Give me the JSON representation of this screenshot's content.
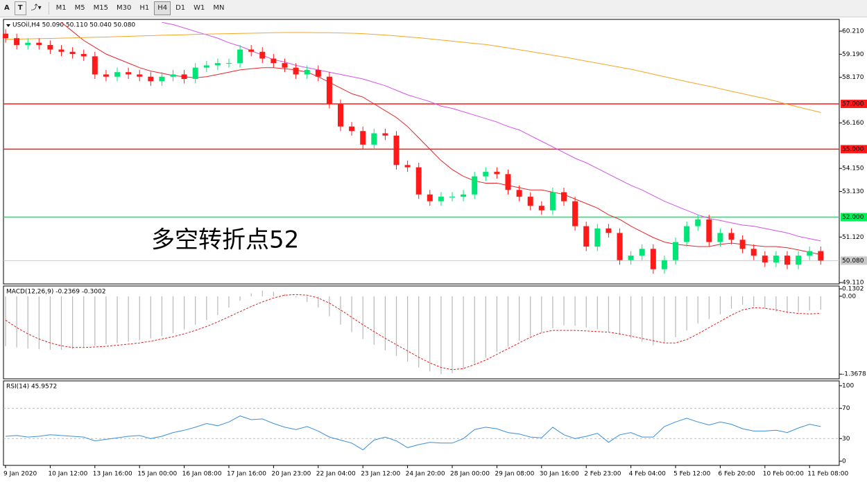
{
  "toolbar": {
    "tools": [
      "A",
      "T"
    ],
    "timeframes": [
      "M1",
      "M5",
      "M15",
      "M30",
      "H1",
      "H4",
      "D1",
      "W1",
      "MN"
    ],
    "active": "H4"
  },
  "chart_data": [
    {
      "type": "candlestick",
      "title": "USOil,H4  50.090 50.110 50.040 50.080",
      "categories": [
        "9 Jan 2020",
        null,
        null,
        null,
        "10 Jan 12:00",
        null,
        null,
        null,
        "13 Jan 16:00",
        null,
        null,
        null,
        "15 Jan 00:00",
        null,
        null,
        null,
        "16 Jan 08:00",
        null,
        null,
        null,
        "17 Jan 16:00",
        null,
        null,
        null,
        "20 Jan 23:00",
        null,
        null,
        null,
        "22 Jan 04:00",
        null,
        null,
        null,
        "23 Jan 12:00",
        null,
        null,
        null,
        "24 Jan 20:00",
        null,
        null,
        null,
        "28 Jan 00:00",
        null,
        null,
        null,
        "29 Jan 08:00",
        null,
        null,
        null,
        "30 Jan 16:00",
        null,
        null,
        null,
        "2 Feb 23:00",
        null,
        null,
        null,
        "4 Feb 04:00",
        null,
        null,
        null,
        "5 Feb 12:00",
        null,
        null,
        null,
        "6 Feb 20:00",
        null,
        null,
        null,
        "10 Feb 00:00",
        null,
        null,
        null,
        "11 Feb 08:00",
        null
      ],
      "open": [
        60.1,
        59.9,
        59.6,
        59.7,
        59.6,
        59.4,
        59.3,
        59.2,
        59.1,
        58.3,
        58.2,
        58.4,
        58.3,
        58.2,
        58.0,
        58.2,
        58.3,
        58.1,
        58.6,
        58.7,
        58.8,
        58.8,
        59.4,
        59.3,
        59.0,
        58.8,
        58.6,
        58.3,
        58.5,
        58.2,
        57.0,
        56.0,
        55.8,
        55.2,
        55.7,
        55.6,
        54.3,
        54.2,
        53.0,
        52.7,
        52.9,
        52.9,
        53.0,
        53.8,
        54.0,
        53.9,
        53.2,
        52.9,
        52.5,
        52.3,
        53.1,
        52.7,
        51.6,
        50.7,
        51.5,
        51.3,
        50.1,
        50.3,
        50.6,
        49.7,
        50.1,
        50.9,
        51.6,
        51.9,
        50.9,
        51.3,
        51.0,
        50.6,
        50.3,
        50.0,
        50.3,
        49.9,
        50.3,
        50.5
      ],
      "high": [
        60.3,
        60.1,
        59.9,
        59.9,
        59.8,
        59.6,
        59.5,
        59.4,
        59.3,
        58.5,
        58.6,
        58.6,
        58.5,
        58.4,
        58.4,
        58.5,
        58.5,
        58.8,
        58.9,
        59.0,
        59.0,
        59.6,
        59.6,
        59.5,
        59.2,
        59.0,
        58.8,
        58.7,
        58.7,
        58.4,
        57.2,
        56.2,
        56.0,
        55.9,
        55.9,
        55.8,
        54.5,
        54.4,
        53.2,
        53.1,
        53.1,
        53.2,
        54.0,
        54.2,
        54.2,
        54.1,
        53.4,
        53.1,
        52.7,
        53.3,
        53.3,
        52.9,
        51.8,
        51.7,
        51.7,
        51.5,
        50.5,
        50.8,
        50.8,
        50.3,
        51.1,
        51.8,
        52.1,
        52.1,
        51.5,
        51.5,
        51.2,
        50.8,
        50.5,
        50.5,
        50.5,
        50.5,
        50.7,
        50.7
      ],
      "low": [
        59.7,
        59.4,
        59.4,
        59.4,
        59.2,
        59.1,
        59.0,
        58.9,
        58.1,
        58.0,
        58.0,
        58.1,
        58.0,
        57.8,
        57.8,
        58.0,
        57.9,
        57.9,
        58.4,
        58.5,
        58.6,
        58.6,
        59.1,
        58.8,
        58.6,
        58.4,
        58.1,
        58.1,
        58.0,
        56.8,
        55.8,
        55.6,
        55.0,
        55.0,
        55.4,
        54.1,
        54.0,
        52.8,
        52.5,
        52.5,
        52.7,
        52.7,
        52.8,
        53.6,
        53.7,
        53.0,
        52.7,
        52.3,
        52.1,
        52.1,
        52.5,
        51.4,
        50.5,
        50.5,
        51.1,
        49.9,
        49.9,
        50.1,
        49.5,
        49.5,
        49.9,
        50.7,
        51.4,
        50.7,
        50.7,
        50.8,
        50.4,
        50.1,
        49.8,
        49.8,
        49.7,
        49.7,
        50.1,
        49.9
      ],
      "close": [
        59.9,
        59.6,
        59.7,
        59.6,
        59.4,
        59.3,
        59.2,
        59.1,
        58.3,
        58.2,
        58.4,
        58.3,
        58.2,
        58.0,
        58.2,
        58.3,
        58.1,
        58.6,
        58.7,
        58.8,
        58.8,
        59.4,
        59.3,
        59.0,
        58.8,
        58.6,
        58.3,
        58.5,
        58.2,
        57.0,
        56.0,
        55.8,
        55.2,
        55.7,
        55.6,
        54.3,
        54.2,
        53.0,
        52.7,
        52.9,
        52.9,
        53.0,
        53.8,
        54.0,
        53.9,
        53.2,
        52.9,
        52.5,
        52.3,
        53.1,
        52.7,
        51.6,
        50.7,
        51.5,
        51.3,
        50.1,
        50.3,
        50.6,
        49.7,
        50.1,
        50.9,
        51.6,
        51.9,
        50.9,
        51.3,
        51.0,
        50.6,
        50.3,
        50.0,
        50.3,
        49.9,
        50.3,
        50.5,
        50.08
      ],
      "up_color": "#00e676",
      "down_color": "#ff1a1a",
      "lines": [
        {
          "color": "#e8242b",
          "values": [
            null,
            null,
            null,
            null,
            null,
            60.6,
            60.2,
            59.8,
            59.5,
            59.2,
            59.0,
            58.8,
            58.6,
            58.45,
            58.35,
            58.25,
            58.2,
            58.15,
            58.2,
            58.3,
            58.4,
            58.5,
            58.55,
            58.6,
            58.6,
            58.55,
            58.5,
            58.4,
            58.2,
            57.95,
            57.7,
            57.45,
            57.3,
            57.0,
            56.7,
            56.4,
            56.0,
            55.5,
            55.0,
            54.5,
            54.1,
            53.8,
            53.6,
            53.5,
            53.5,
            53.4,
            53.3,
            53.2,
            53.2,
            53.1,
            53.0,
            52.8,
            52.6,
            52.4,
            52.1,
            51.9,
            51.6,
            51.35,
            51.1,
            50.9,
            50.8,
            50.75,
            50.7,
            50.7,
            50.8,
            50.85,
            50.8,
            50.75,
            50.7,
            50.7,
            50.65,
            50.55,
            50.45,
            50.35
          ]
        },
        {
          "color": "#d452e8",
          "values": [
            null,
            null,
            null,
            null,
            null,
            null,
            null,
            null,
            null,
            null,
            null,
            null,
            null,
            null,
            60.6,
            60.5,
            60.35,
            60.2,
            60.05,
            59.9,
            59.7,
            59.55,
            59.35,
            59.15,
            58.95,
            58.85,
            58.7,
            58.6,
            58.5,
            58.4,
            58.3,
            58.2,
            58.1,
            57.95,
            57.8,
            57.6,
            57.4,
            57.25,
            57.1,
            56.9,
            56.8,
            56.65,
            56.5,
            56.35,
            56.2,
            56.0,
            55.85,
            55.6,
            55.35,
            55.1,
            54.85,
            54.6,
            54.4,
            54.15,
            53.9,
            53.65,
            53.4,
            53.2,
            52.95,
            52.7,
            52.5,
            52.3,
            52.1,
            51.95,
            51.85,
            51.75,
            51.65,
            51.6,
            51.5,
            51.4,
            51.3,
            51.15,
            51.05,
            50.95
          ]
        },
        {
          "color": "#f5a623",
          "values": [
            59.85,
            59.86,
            59.87,
            59.88,
            59.89,
            59.9,
            59.91,
            59.93,
            59.94,
            59.95,
            59.97,
            59.98,
            60.0,
            60.01,
            60.03,
            60.04,
            60.05,
            60.07,
            60.08,
            60.09,
            60.1,
            60.11,
            60.12,
            60.13,
            60.14,
            60.15,
            60.15,
            60.15,
            60.14,
            60.14,
            60.13,
            60.12,
            60.1,
            60.07,
            60.04,
            60.0,
            59.96,
            59.92,
            59.87,
            59.82,
            59.77,
            59.72,
            59.67,
            59.62,
            59.55,
            59.47,
            59.39,
            59.31,
            59.23,
            59.15,
            59.07,
            58.98,
            58.89,
            58.8,
            58.71,
            58.62,
            58.53,
            58.42,
            58.31,
            58.2,
            58.09,
            57.98,
            57.88,
            57.78,
            57.67,
            57.56,
            57.45,
            57.34,
            57.24,
            57.12,
            56.98,
            56.86,
            56.74,
            56.62
          ]
        }
      ],
      "hlines": [
        {
          "value": 57,
          "label": "57.000",
          "color": "#ff1a1a"
        },
        {
          "value": 55,
          "label": "55.000",
          "color": "#ff1a1a"
        },
        {
          "value": 52,
          "label": "52.000",
          "color": "#00f05a"
        },
        {
          "value": 50.08,
          "label": "50.080",
          "color": "#c8c8c8"
        }
      ],
      "annotation": {
        "text": "多空转折点52",
        "color": "#ff1a1a"
      },
      "ylim": [
        49.05,
        60.73
      ],
      "yticks": [
        {
          "value": 60.21,
          "label": "60.210"
        },
        {
          "value": 59.19,
          "label": "59.190"
        },
        {
          "value": 58.17,
          "label": "58.170"
        },
        {
          "value": 56.16,
          "label": "56.160"
        },
        {
          "value": 54.15,
          "label": "54.150"
        },
        {
          "value": 53.13,
          "label": "53.130"
        },
        {
          "value": 51.12,
          "label": "51.120"
        },
        {
          "value": 49.11,
          "label": "49.110"
        }
      ]
    },
    {
      "type": "macd",
      "title": "MACD(12,26,9) -0.2369 -0.3002",
      "histogram": [
        -0.88,
        -0.9,
        -0.92,
        -0.93,
        -0.94,
        -0.94,
        -0.93,
        -0.9,
        -0.87,
        -0.84,
        -0.82,
        -0.8,
        -0.77,
        -0.74,
        -0.7,
        -0.65,
        -0.58,
        -0.5,
        -0.42,
        -0.33,
        -0.2,
        -0.08,
        0.05,
        0.1,
        0.08,
        0.04,
        -0.02,
        -0.1,
        -0.2,
        -0.35,
        -0.5,
        -0.63,
        -0.75,
        -0.85,
        -0.95,
        -1.05,
        -1.15,
        -1.25,
        -1.32,
        -1.37,
        -1.35,
        -1.28,
        -1.18,
        -1.08,
        -0.98,
        -0.88,
        -0.78,
        -0.7,
        -0.63,
        -0.56,
        -0.51,
        -0.52,
        -0.55,
        -0.58,
        -0.62,
        -0.68,
        -0.74,
        -0.8,
        -0.86,
        -0.82,
        -0.72,
        -0.6,
        -0.48,
        -0.4,
        -0.32,
        -0.22,
        -0.15,
        -0.18,
        -0.22,
        -0.27,
        -0.3,
        -0.28,
        -0.25,
        -0.2369
      ],
      "signal": [
        -0.42,
        -0.55,
        -0.66,
        -0.75,
        -0.82,
        -0.87,
        -0.9,
        -0.9,
        -0.89,
        -0.88,
        -0.86,
        -0.84,
        -0.82,
        -0.79,
        -0.75,
        -0.71,
        -0.66,
        -0.6,
        -0.53,
        -0.45,
        -0.36,
        -0.27,
        -0.18,
        -0.1,
        -0.03,
        0.02,
        0.03,
        0.02,
        -0.03,
        -0.12,
        -0.24,
        -0.37,
        -0.5,
        -0.62,
        -0.74,
        -0.85,
        -0.96,
        -1.07,
        -1.17,
        -1.25,
        -1.29,
        -1.27,
        -1.2,
        -1.12,
        -1.02,
        -0.92,
        -0.82,
        -0.72,
        -0.64,
        -0.6,
        -0.6,
        -0.6,
        -0.61,
        -0.62,
        -0.63,
        -0.66,
        -0.7,
        -0.74,
        -0.78,
        -0.82,
        -0.82,
        -0.76,
        -0.66,
        -0.55,
        -0.44,
        -0.33,
        -0.24,
        -0.2,
        -0.21,
        -0.24,
        -0.28,
        -0.3,
        -0.31,
        -0.3002
      ],
      "histogram_color": "#b8b8b8",
      "signal_color": "#e0201e",
      "ylim": [
        -1.45,
        0.18
      ],
      "yticks": [
        {
          "value": 0.1302,
          "label": "0.1302"
        },
        {
          "value": 0,
          "label": "0.00"
        },
        {
          "value": -1.3678,
          "label": "-1.3678"
        }
      ]
    },
    {
      "type": "line",
      "title": "RSI(14) 45.9572",
      "values": [
        33,
        34,
        32,
        33,
        35,
        34,
        33,
        32,
        27,
        29,
        31,
        33,
        34,
        30,
        33,
        38,
        41,
        45,
        50,
        47,
        52,
        60,
        55,
        56,
        50,
        45,
        42,
        46,
        40,
        32,
        28,
        24,
        15,
        28,
        32,
        27,
        18,
        22,
        25,
        24,
        24,
        30,
        42,
        45,
        43,
        38,
        36,
        32,
        31,
        45,
        35,
        30,
        33,
        37,
        25,
        35,
        38,
        32,
        32,
        46,
        52,
        57,
        52,
        48,
        52,
        49,
        43,
        40,
        40,
        41,
        38,
        44,
        49,
        45.9572
      ],
      "color": "#3a8fd9",
      "levels": [
        30,
        70
      ],
      "ylim": [
        -5.5,
        106.4
      ],
      "yticks": [
        0,
        30,
        70,
        100
      ]
    }
  ]
}
